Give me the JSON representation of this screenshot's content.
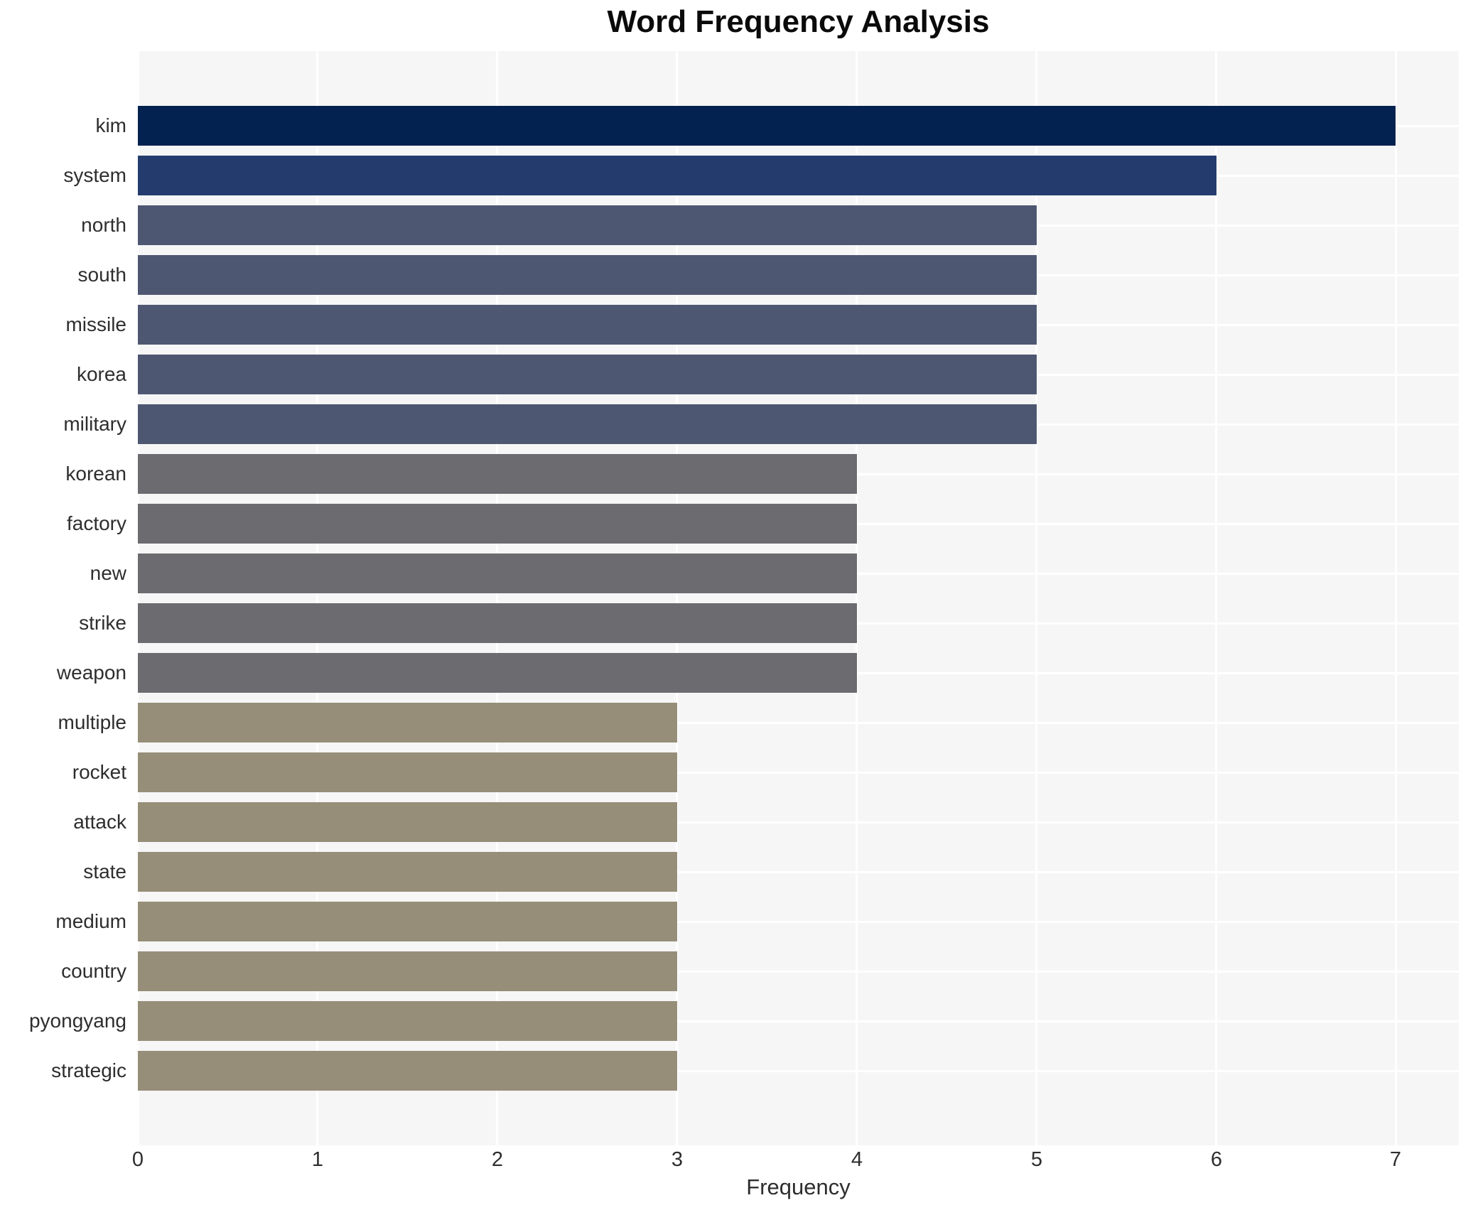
{
  "chart_data": {
    "type": "bar",
    "orientation": "horizontal",
    "title": "Word Frequency Analysis",
    "xlabel": "Frequency",
    "ylabel": "",
    "categories": [
      "kim",
      "system",
      "north",
      "south",
      "missile",
      "korea",
      "military",
      "korean",
      "factory",
      "new",
      "strike",
      "weapon",
      "multiple",
      "rocket",
      "attack",
      "state",
      "medium",
      "country",
      "pyongyang",
      "strategic"
    ],
    "values": [
      7,
      6,
      5,
      5,
      5,
      5,
      5,
      4,
      4,
      4,
      4,
      4,
      3,
      3,
      3,
      3,
      3,
      3,
      3,
      3
    ],
    "xticks": [
      0,
      1,
      2,
      3,
      4,
      5,
      6,
      7
    ],
    "xlim": [
      0,
      7.35
    ],
    "grid": true,
    "legend_position": "none",
    "colors": {
      "figure_background": "#ffffff",
      "plot_background": "#f6f6f7",
      "gridline": "#ffffff",
      "title_text": "#0a0a0a",
      "axis_text": "#2e2e2e",
      "bar_colors_by_value": {
        "7": "#04224f",
        "6": "#243c6d",
        "5": "#4e5771",
        "4": "#6b6b70",
        "3": "#968e78"
      }
    },
    "bar_colors": [
      "#04224f",
      "#243c6d",
      "#4e5771",
      "#4e5771",
      "#4e5771",
      "#4e5771",
      "#4e5771",
      "#6b6b70",
      "#6b6b70",
      "#6b6b70",
      "#6b6b70",
      "#6b6b70",
      "#968e78",
      "#968e78",
      "#968e78",
      "#968e78",
      "#968e78",
      "#968e78",
      "#968e78",
      "#968e78"
    ]
  }
}
